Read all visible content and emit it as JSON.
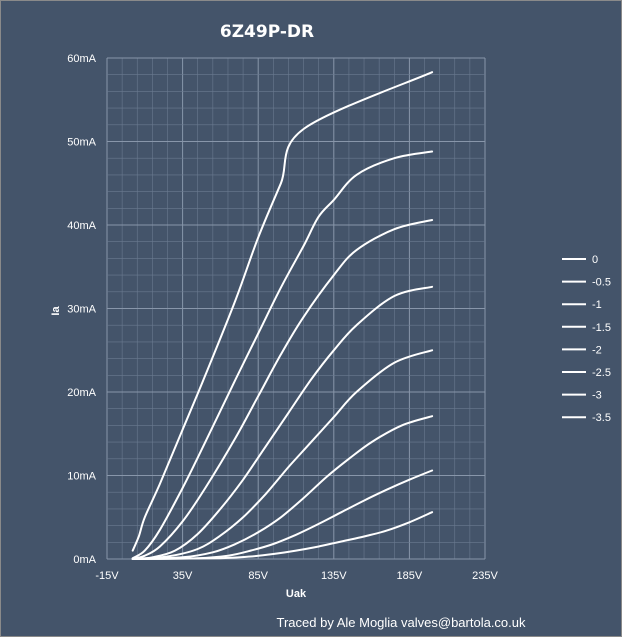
{
  "chart_data": {
    "type": "line",
    "title": "6Z49P-DR",
    "xlabel": "Uak",
    "ylabel": "Ia",
    "credit": "Traced by Ale Moglia valves@bartola.co.uk",
    "xlim": [
      -15,
      235
    ],
    "ylim": [
      0,
      60
    ],
    "x_ticks": [
      "-15V",
      "35V",
      "85V",
      "135V",
      "185V",
      "235V"
    ],
    "y_ticks": [
      "0mA",
      "10mA",
      "20mA",
      "30mA",
      "40mA",
      "50mA",
      "60mA"
    ],
    "grid": true,
    "legend_position": "right",
    "line_color": "#ffffff",
    "background_color": "#44546a",
    "grid_color": "#6a7a90",
    "series": [
      {
        "name": "0",
        "points": [
          [
            2,
            1.0
          ],
          [
            6,
            2.7
          ],
          [
            10,
            5.0
          ],
          [
            20,
            9.0
          ],
          [
            35,
            15.5
          ],
          [
            50,
            22.0
          ],
          [
            70,
            31.0
          ],
          [
            85,
            38.5
          ],
          [
            100,
            45.0
          ],
          [
            115,
            51.5
          ],
          [
            200,
            58.3
          ]
        ]
      },
      {
        "name": "-0.5",
        "points": [
          [
            2,
            0.1
          ],
          [
            10,
            1.0
          ],
          [
            20,
            3.5
          ],
          [
            35,
            8.5
          ],
          [
            50,
            14.0
          ],
          [
            70,
            21.5
          ],
          [
            85,
            27.0
          ],
          [
            100,
            32.5
          ],
          [
            115,
            37.5
          ],
          [
            125,
            41.0
          ],
          [
            135,
            43.0
          ],
          [
            150,
            46.0
          ],
          [
            175,
            48.0
          ],
          [
            200,
            48.8
          ]
        ]
      },
      {
        "name": "-1",
        "points": [
          [
            2,
            0.0
          ],
          [
            10,
            0.4
          ],
          [
            20,
            1.5
          ],
          [
            35,
            4.5
          ],
          [
            50,
            8.5
          ],
          [
            70,
            14.5
          ],
          [
            85,
            19.5
          ],
          [
            100,
            24.5
          ],
          [
            115,
            29.0
          ],
          [
            135,
            34.0
          ],
          [
            150,
            37.0
          ],
          [
            175,
            39.5
          ],
          [
            200,
            40.6
          ]
        ]
      },
      {
        "name": "-1.5",
        "points": [
          [
            2,
            0.0
          ],
          [
            15,
            0.2
          ],
          [
            30,
            1.0
          ],
          [
            45,
            3.0
          ],
          [
            60,
            6.0
          ],
          [
            75,
            9.5
          ],
          [
            90,
            13.5
          ],
          [
            105,
            17.5
          ],
          [
            120,
            21.5
          ],
          [
            135,
            25.0
          ],
          [
            150,
            28.0
          ],
          [
            175,
            31.5
          ],
          [
            200,
            32.6
          ]
        ]
      },
      {
        "name": "-2",
        "points": [
          [
            2,
            0.0
          ],
          [
            25,
            0.3
          ],
          [
            45,
            1.2
          ],
          [
            60,
            2.8
          ],
          [
            75,
            5.0
          ],
          [
            90,
            7.8
          ],
          [
            105,
            11.0
          ],
          [
            120,
            14.0
          ],
          [
            135,
            17.0
          ],
          [
            150,
            20.0
          ],
          [
            175,
            23.5
          ],
          [
            200,
            25.0
          ]
        ]
      },
      {
        "name": "-2.5",
        "points": [
          [
            2,
            0.0
          ],
          [
            35,
            0.2
          ],
          [
            55,
            0.8
          ],
          [
            70,
            1.8
          ],
          [
            85,
            3.2
          ],
          [
            100,
            5.0
          ],
          [
            115,
            7.3
          ],
          [
            130,
            9.8
          ],
          [
            145,
            12.0
          ],
          [
            160,
            14.0
          ],
          [
            180,
            16.0
          ],
          [
            200,
            17.1
          ]
        ]
      },
      {
        "name": "-3",
        "points": [
          [
            2,
            0.0
          ],
          [
            45,
            0.1
          ],
          [
            65,
            0.4
          ],
          [
            80,
            1.0
          ],
          [
            95,
            1.8
          ],
          [
            110,
            2.9
          ],
          [
            125,
            4.2
          ],
          [
            140,
            5.6
          ],
          [
            155,
            7.0
          ],
          [
            170,
            8.3
          ],
          [
            185,
            9.5
          ],
          [
            200,
            10.6
          ]
        ]
      },
      {
        "name": "-3.5",
        "points": [
          [
            2,
            0.0
          ],
          [
            60,
            0.1
          ],
          [
            80,
            0.3
          ],
          [
            95,
            0.6
          ],
          [
            110,
            1.0
          ],
          [
            125,
            1.5
          ],
          [
            140,
            2.1
          ],
          [
            155,
            2.7
          ],
          [
            170,
            3.4
          ],
          [
            185,
            4.4
          ],
          [
            200,
            5.6
          ]
        ]
      }
    ]
  }
}
